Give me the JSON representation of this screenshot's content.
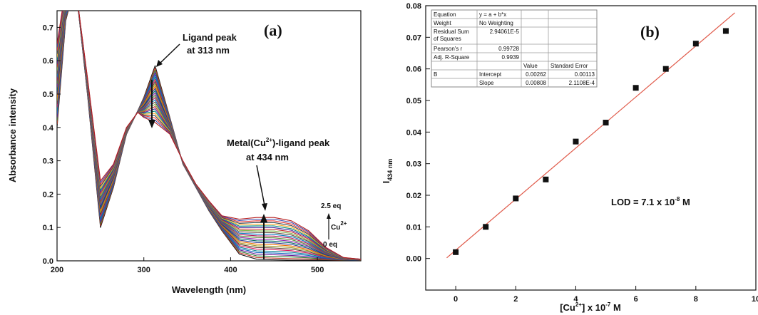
{
  "chart_data": [
    {
      "panel": "(a)",
      "type": "line",
      "xlabel": "Wavelength (nm)",
      "ylabel": "Absorbance intensity",
      "xlim": [
        200,
        550
      ],
      "ylim": [
        0,
        0.75
      ],
      "x_ticks": [
        "200",
        "300",
        "400",
        "500"
      ],
      "y_ticks": [
        "0.0",
        "0.1",
        "0.2",
        "0.3",
        "0.4",
        "0.5",
        "0.6",
        "0.7"
      ],
      "annotations": {
        "ligand_peak_line1": "Ligand peak",
        "ligand_peak_line2": "at 313 nm",
        "metal_peak_line1": "Metal(Cu",
        "metal_peak_sup": "2+",
        "metal_peak_line1_end": ")-ligand peak",
        "metal_peak_line2": "at 434 nm",
        "eq_top": "2.5 eq",
        "eq_bottom": "0 eq",
        "cu_label": "Cu",
        "cu_sup": "2+"
      },
      "spectra_count": 26,
      "first_spectrum": {
        "wavelength": [
          200,
          210,
          220,
          225,
          235,
          250,
          265,
          280,
          293,
          300,
          313,
          330,
          345,
          360,
          375,
          390,
          410,
          430,
          450,
          470,
          490,
          510,
          530,
          550
        ],
        "absorbance": [
          0.4,
          0.72,
          0.82,
          0.74,
          0.5,
          0.1,
          0.22,
          0.38,
          0.45,
          0.49,
          0.585,
          0.43,
          0.29,
          0.22,
          0.15,
          0.09,
          0.02,
          0.005,
          0.003,
          0.002,
          0.002,
          0.002,
          0.002,
          0.002
        ]
      },
      "last_spectrum": {
        "wavelength": [
          200,
          210,
          220,
          225,
          235,
          250,
          265,
          280,
          293,
          300,
          313,
          330,
          345,
          360,
          375,
          390,
          410,
          430,
          450,
          470,
          490,
          510,
          530,
          550
        ],
        "absorbance": [
          0.65,
          0.82,
          0.82,
          0.75,
          0.55,
          0.24,
          0.29,
          0.4,
          0.445,
          0.43,
          0.415,
          0.38,
          0.3,
          0.23,
          0.18,
          0.135,
          0.125,
          0.13,
          0.13,
          0.12,
          0.09,
          0.04,
          0.01,
          0.005
        ]
      },
      "colors": [
        "#1a1a1a",
        "#c0392b",
        "#2e7d32",
        "#6a1b9a",
        "#1565c0",
        "#00838f",
        "#d81b60",
        "#5d4037",
        "#9e9d24",
        "#ef6c00",
        "#283593",
        "#00695c",
        "#8e24aa",
        "#558b2f",
        "#ad1457",
        "#0277bd",
        "#6d4c41",
        "#7cb342",
        "#c62828",
        "#4527a0",
        "#00897b",
        "#f9a825",
        "#37474f",
        "#e53935",
        "#3949ab",
        "#b71c1c"
      ]
    },
    {
      "panel": "(b)",
      "type": "scatter",
      "xlabel_prefix": "[Cu",
      "xlabel_sup": "2+",
      "xlabel_mid": "] x 10",
      "xlabel_sup2": "-7",
      "xlabel_suffix": " M",
      "ylabel_main": "I",
      "ylabel_sub": "434 nm",
      "xlim": [
        -1,
        10
      ],
      "ylim": [
        -0.01,
        0.08
      ],
      "x_ticks": [
        "0",
        "2",
        "4",
        "6",
        "8",
        "10"
      ],
      "y_ticks": [
        "0.00",
        "0.01",
        "0.02",
        "0.03",
        "0.04",
        "0.05",
        "0.06",
        "0.07",
        "0.08"
      ],
      "x": [
        0,
        1,
        2,
        3,
        4,
        5,
        6,
        7,
        8,
        9
      ],
      "y": [
        0.002,
        0.01,
        0.019,
        0.025,
        0.037,
        0.043,
        0.054,
        0.06,
        0.068,
        0.072
      ],
      "fit": {
        "intercept": 0.00262,
        "slope": 0.00808,
        "color": "#e05a4a"
      },
      "lod_text_prefix": "LOD = 7.1 x 10",
      "lod_sup": "-8",
      "lod_text_suffix": " M",
      "stats_table": {
        "rows": [
          [
            "Equation",
            "y = a + b*x",
            "",
            ""
          ],
          [
            "Weight",
            "No Weighting",
            "",
            ""
          ],
          [
            "Residual Sum of Squares",
            "2.94061E-5",
            "",
            ""
          ],
          [
            "Pearson's r",
            "0.99728",
            "",
            ""
          ],
          [
            "Adj. R-Square",
            "0.9939",
            "",
            ""
          ],
          [
            "",
            "",
            "Value",
            "Standard Error"
          ],
          [
            "B",
            "Intercept",
            "0.00262",
            "0.00113"
          ],
          [
            "",
            "Slope",
            "0.00808",
            "2.1108E-4"
          ]
        ]
      }
    }
  ]
}
